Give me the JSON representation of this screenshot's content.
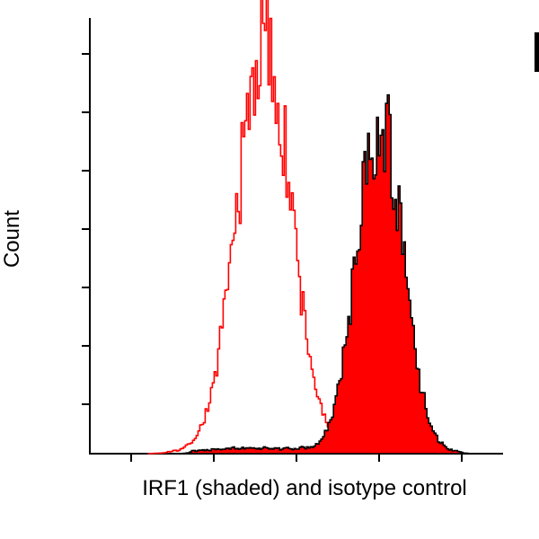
{
  "figure": {
    "background": "#ffffff",
    "axis_color": "#000000"
  },
  "chart_data": {
    "type": "area",
    "chart_kind": "flow-cytometry-overlay-histogram",
    "title": "",
    "xlabel": "IRF1 (shaded) and isotype control",
    "ylabel": "Count",
    "x_axis": {
      "range": [
        0,
        100
      ],
      "tick_labels": [],
      "ticks_count": 5,
      "labeled": false
    },
    "y_axis": {
      "range": [
        0,
        1.05
      ],
      "tick_labels": [],
      "ticks_count": 7,
      "labeled": false
    },
    "legend": "none",
    "series": [
      {
        "name": "isotype control",
        "style": "open",
        "line_color": "#ff0000",
        "fill_color": "none",
        "peak_x": 42,
        "peak_height": 1.0,
        "envelope_x": [
          14,
          16,
          18,
          20,
          22,
          24,
          26,
          28,
          30,
          32,
          34,
          36,
          38,
          40,
          41,
          42,
          43,
          44,
          46,
          48,
          50,
          52,
          54,
          56,
          58,
          60,
          62,
          64,
          66,
          70
        ],
        "envelope_y": [
          0,
          0.001,
          0.002,
          0.004,
          0.009,
          0.022,
          0.048,
          0.098,
          0.182,
          0.306,
          0.469,
          0.653,
          0.828,
          0.954,
          0.99,
          1.0,
          0.99,
          0.954,
          0.828,
          0.653,
          0.469,
          0.306,
          0.182,
          0.098,
          0.048,
          0.022,
          0.009,
          0.003,
          0.001,
          0
        ],
        "noise": 0.16
      },
      {
        "name": "IRF1 (shaded)",
        "style": "filled",
        "line_color": "#000000",
        "fill_color": "#ff0000",
        "peak_x": 70,
        "peak_height": 0.82,
        "envelope_x": [
          22,
          26,
          30,
          34,
          38,
          42,
          46,
          50,
          54,
          56,
          58,
          60,
          62,
          64,
          66,
          68,
          70,
          72,
          74,
          76,
          78,
          80,
          82,
          84,
          86,
          88,
          90,
          92
        ],
        "envelope_y": [
          0,
          0.006,
          0.009,
          0.012,
          0.01,
          0.012,
          0.01,
          0.011,
          0.014,
          0.032,
          0.076,
          0.157,
          0.285,
          0.452,
          0.63,
          0.768,
          0.82,
          0.768,
          0.63,
          0.452,
          0.285,
          0.157,
          0.076,
          0.032,
          0.013,
          0.005,
          0.002,
          0
        ],
        "noise": 0.15
      }
    ]
  }
}
